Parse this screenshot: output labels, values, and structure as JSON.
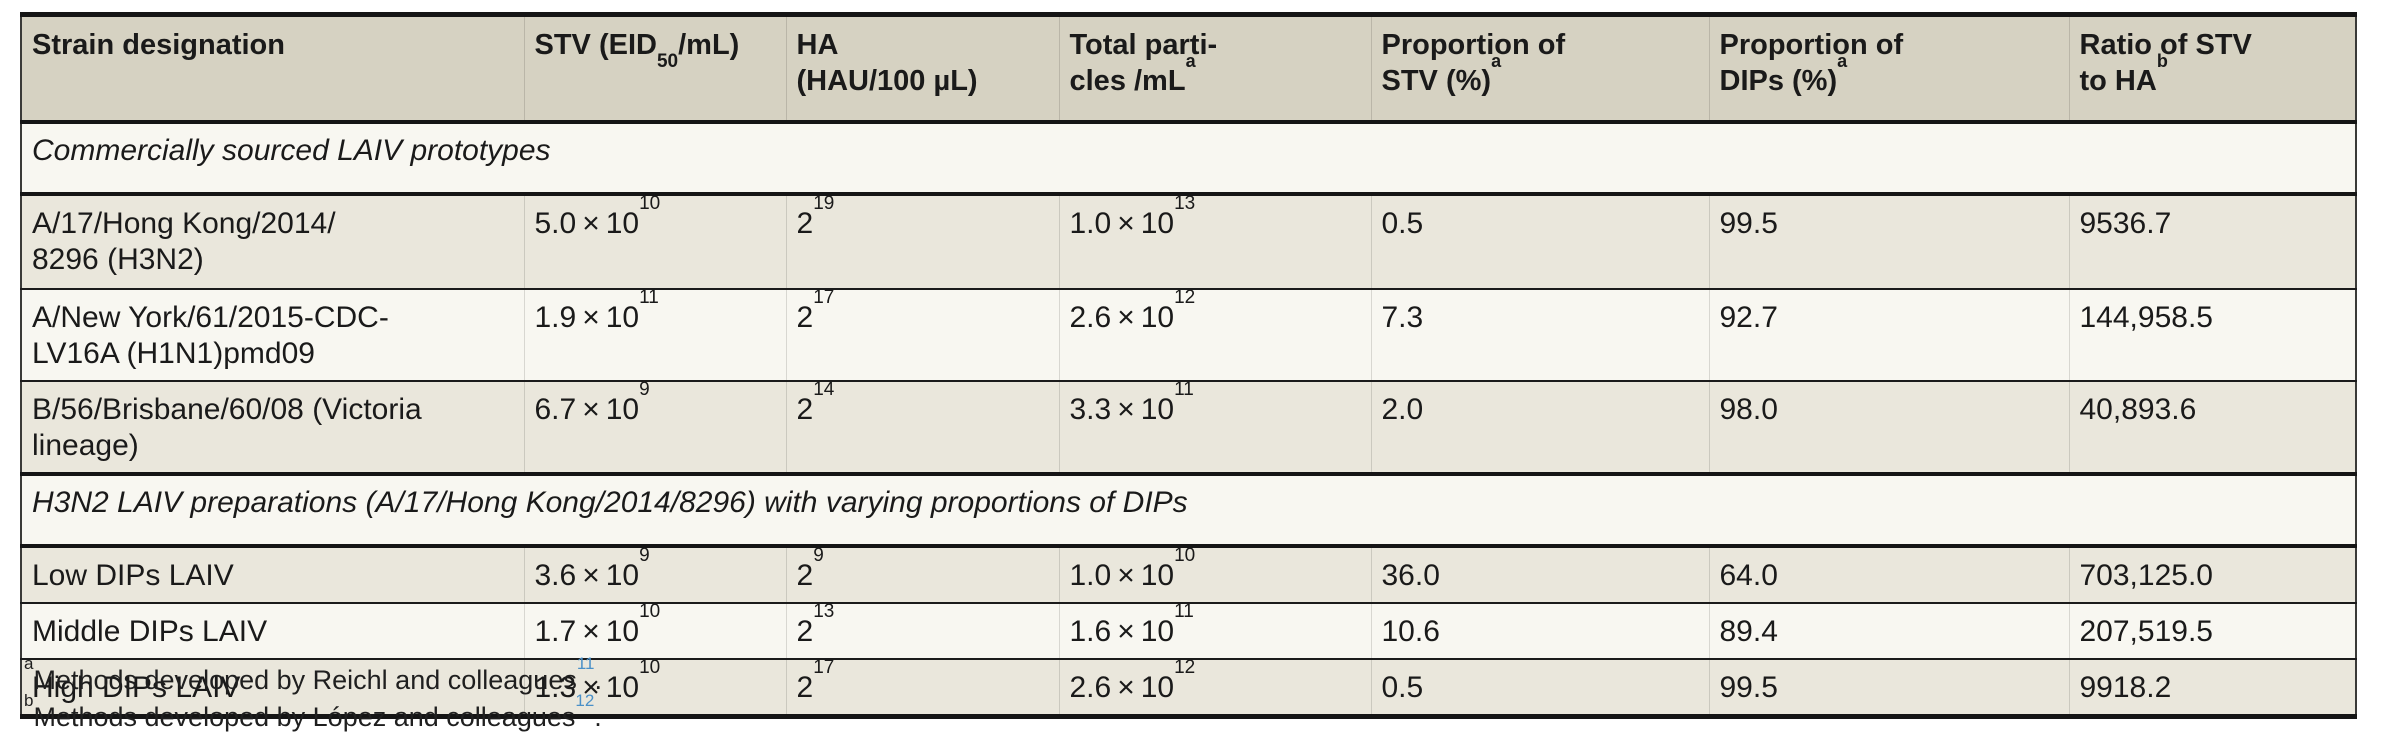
{
  "colors": {
    "header_bg": "#d6d2c2",
    "row_beige": "#eae7dc",
    "row_light": "#f8f7f1",
    "rule": "#151515",
    "citation_blue": "#4a90c8"
  },
  "table": {
    "columns": [
      {
        "t1": "Strain designation"
      },
      {
        "t1": "STV (EID",
        "sub": "50",
        "t2": "/mL)"
      },
      {
        "t1": "HA\n(HAU/100 µL)"
      },
      {
        "t1": "Total parti-\ncles /mL",
        "sup": "a"
      },
      {
        "t1": "Proportion of\nSTV (%)",
        "sup": "a"
      },
      {
        "t1": "Proportion of\nDIPs (%)",
        "sup": "a"
      },
      {
        "t1": "Ratio of STV\nto HA",
        "sup": "b"
      }
    ],
    "section1": "Commercially sourced LAIV prototypes",
    "section2": "H3N2 LAIV preparations (A/17/Hong Kong/2014/8296) with varying proportions of DIPs",
    "rows": [
      {
        "strain": "A/17/Hong Kong/2014/\n8296 (H3N2)",
        "stv": {
          "t": "5.0 × 10",
          "sup": "10"
        },
        "ha": {
          "t": "2",
          "sup": "19"
        },
        "particles": {
          "t": "1.0 × 10",
          "sup": "13"
        },
        "prop_stv": "0.5",
        "prop_dips": "99.5",
        "ratio": "9536.7"
      },
      {
        "strain": "A/New York/61/2015-CDC-\nLV16A (H1N1)pmd09",
        "stv": {
          "t": "1.9 × 10",
          "sup": "11"
        },
        "ha": {
          "t": "2",
          "sup": "17"
        },
        "particles": {
          "t": "2.6 × 10",
          "sup": "12"
        },
        "prop_stv": "7.3",
        "prop_dips": "92.7",
        "ratio": "144,958.5"
      },
      {
        "strain": "B/56/Brisbane/60/08 (Victoria\nlineage)",
        "stv": {
          "t": "6.7 × 10",
          "sup": "9"
        },
        "ha": {
          "t": "2",
          "sup": "14"
        },
        "particles": {
          "t": "3.3 × 10",
          "sup": "11"
        },
        "prop_stv": "2.0",
        "prop_dips": "98.0",
        "ratio": "40,893.6"
      },
      {
        "strain": "Low DIPs LAIV",
        "stv": {
          "t": "3.6 × 10",
          "sup": "9"
        },
        "ha": {
          "t": "2",
          "sup": "9"
        },
        "particles": {
          "t": "1.0 × 10",
          "sup": "10"
        },
        "prop_stv": "36.0",
        "prop_dips": "64.0",
        "ratio": "703,125.0"
      },
      {
        "strain": "Middle DIPs LAIV",
        "stv": {
          "t": "1.7 × 10",
          "sup": "10"
        },
        "ha": {
          "t": "2",
          "sup": "13"
        },
        "particles": {
          "t": "1.6 × 10",
          "sup": "11"
        },
        "prop_stv": "10.6",
        "prop_dips": "89.4",
        "ratio": "207,519.5"
      },
      {
        "strain": "High DIPs LAIV",
        "stv": {
          "t": "1.3 × 10",
          "sup": "10"
        },
        "ha": {
          "t": "2",
          "sup": "17"
        },
        "particles": {
          "t": "2.6 × 10",
          "sup": "12"
        },
        "prop_stv": "0.5",
        "prop_dips": "99.5",
        "ratio": "9918.2"
      }
    ]
  },
  "footnotes": [
    {
      "marker": "a",
      "text": "Methods developed by Reichl and colleagues",
      "ref": "11",
      "end": "."
    },
    {
      "marker": "b",
      "text": "Methods developed by López and colleagues",
      "ref": "12",
      "end": "."
    }
  ]
}
